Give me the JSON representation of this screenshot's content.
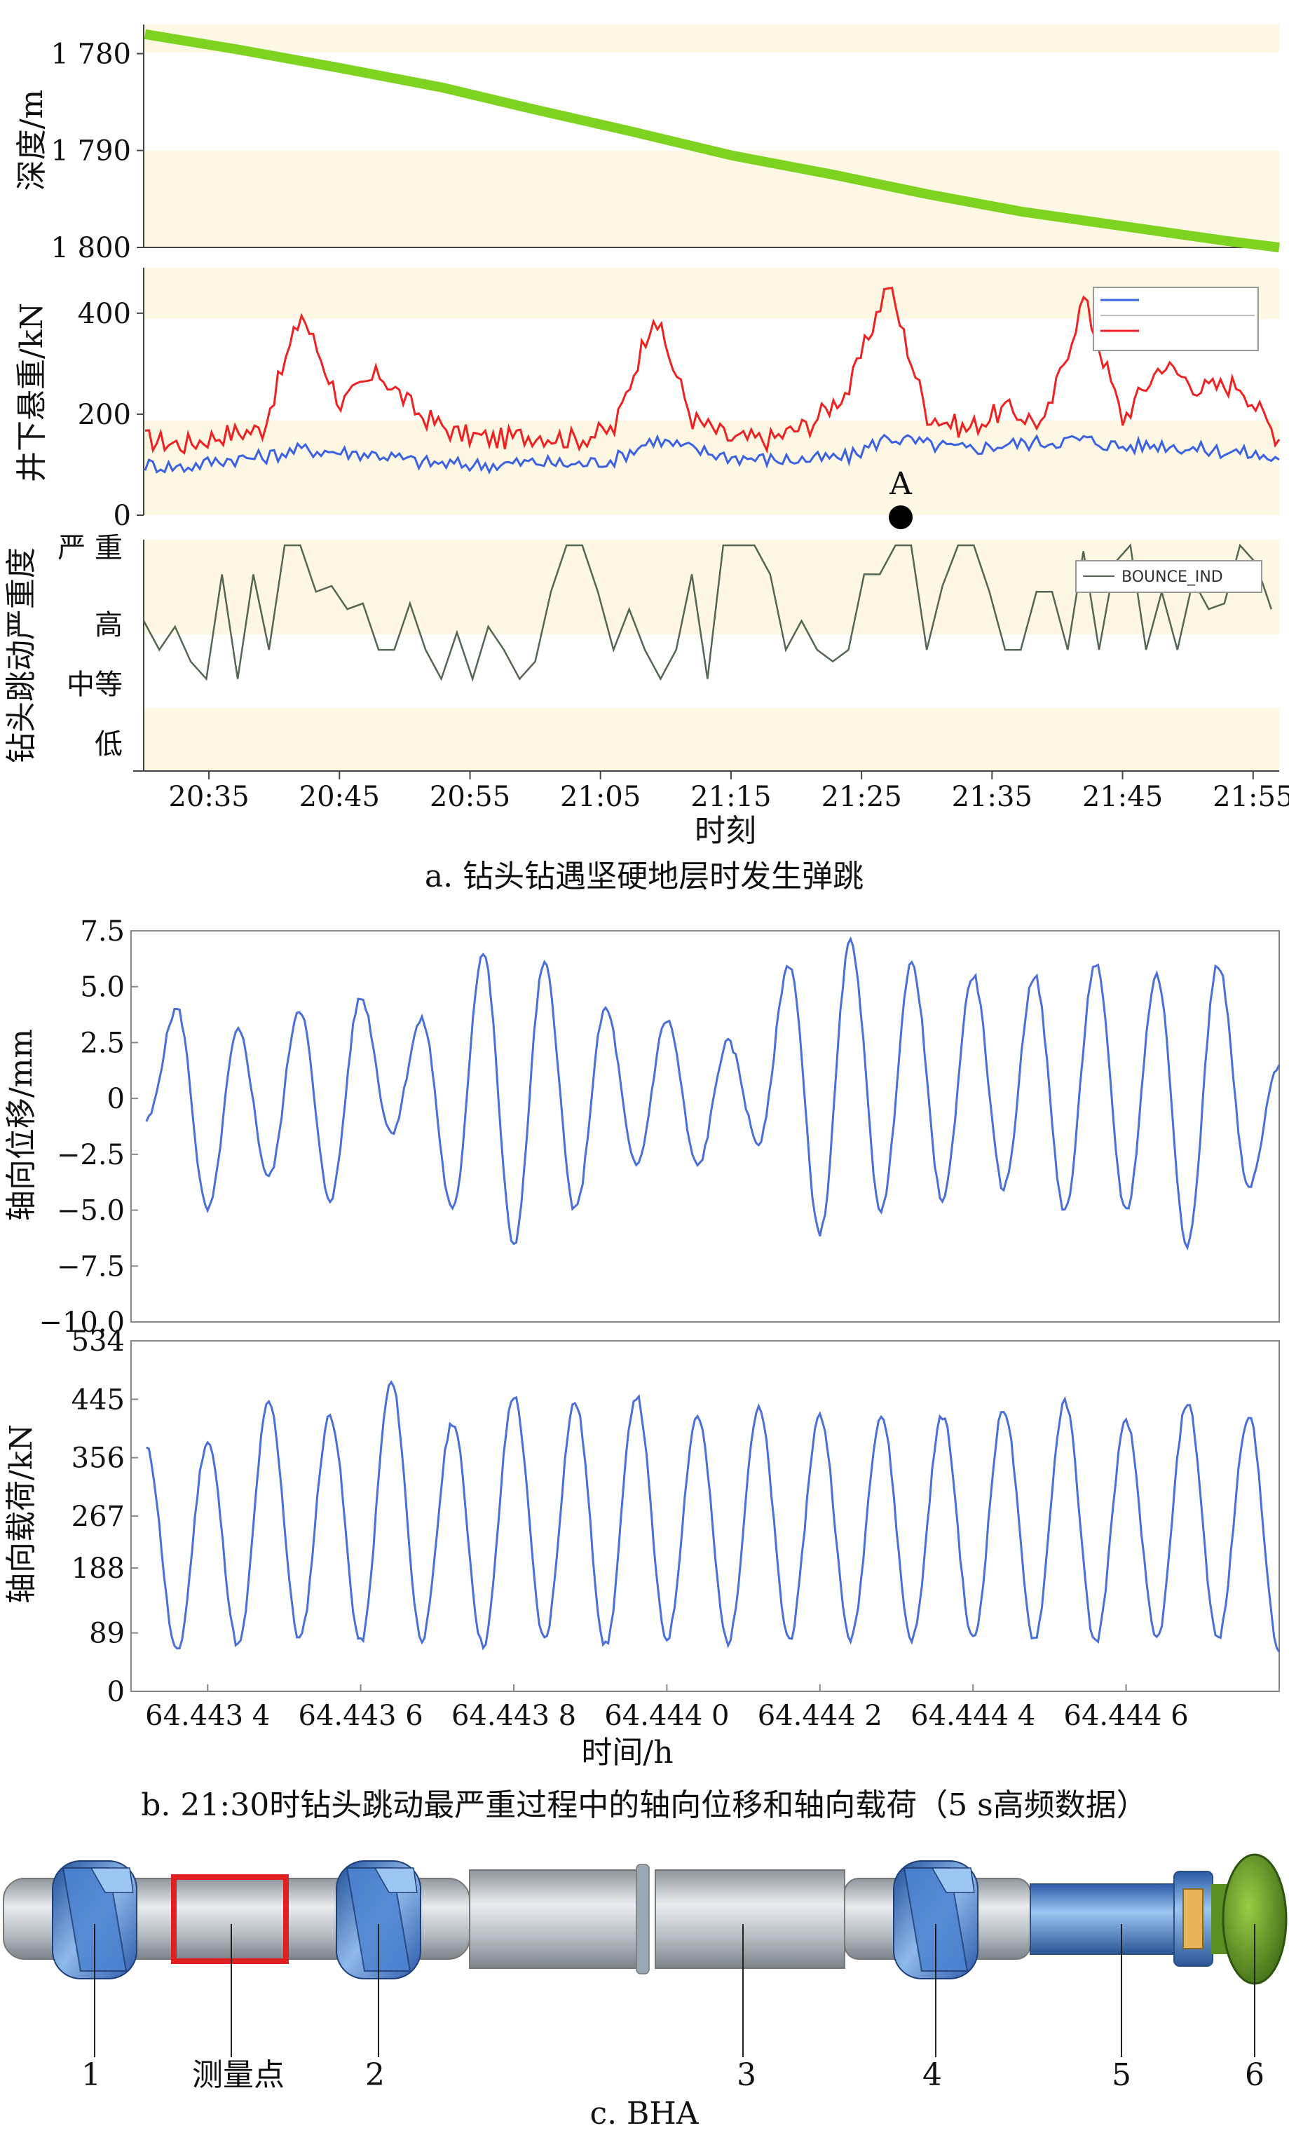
{
  "chart_data": [
    {
      "type": "line",
      "panel": "a",
      "ylabel": "深度/m",
      "yticks": [
        "1 780",
        "1 790",
        "1 800"
      ],
      "ylim": [
        1777,
        1800
      ],
      "ytick_values": [
        1780,
        1790,
        1800
      ],
      "y_inverted": true,
      "xlim": [
        20.5,
        21.95
      ],
      "colors": {
        "series": "#7ed321"
      },
      "series": [
        {
          "x": [
            20.5,
            20.62,
            20.75,
            20.88,
            21.0,
            21.12,
            21.25,
            21.38,
            21.5,
            21.62,
            21.75,
            21.88,
            21.95
          ],
          "values": [
            1778.0,
            1779.6,
            1781.5,
            1783.5,
            1785.8,
            1788.0,
            1790.5,
            1792.5,
            1794.5,
            1796.3,
            1797.8,
            1799.3,
            1800.0
          ]
        }
      ]
    },
    {
      "type": "line",
      "panel": "a",
      "ylabel": "井下悬重/kN",
      "yticks": [
        "0",
        "200",
        "400"
      ],
      "ytick_values": [
        0,
        200,
        400
      ],
      "ylim": [
        0,
        490
      ],
      "xlim": [
        20.5,
        21.95
      ],
      "annotation": "A",
      "colors": {
        "red": "#ee2222",
        "blue": "#3b62e0"
      },
      "series": [
        {
          "x": [
            20.5,
            20.55,
            20.6,
            20.65,
            20.7,
            20.75,
            20.8,
            20.85,
            20.9,
            20.95,
            21.0,
            21.05,
            21.1,
            21.15,
            21.2,
            21.25,
            21.3,
            21.35,
            21.4,
            21.45,
            21.5,
            21.55,
            21.6,
            21.65,
            21.7,
            21.75,
            21.8,
            21.85,
            21.9,
            21.95
          ],
          "values": [
            150,
            140,
            160,
            170,
            400,
            220,
            280,
            200,
            160,
            150,
            160,
            150,
            170,
            400,
            190,
            150,
            150,
            180,
            250,
            460,
            200,
            170,
            210,
            180,
            430,
            190,
            300,
            250,
            260,
            150
          ]
        },
        {
          "x": [
            20.5,
            20.55,
            20.6,
            20.65,
            20.7,
            20.75,
            20.8,
            20.85,
            20.9,
            20.95,
            21.0,
            21.05,
            21.1,
            21.15,
            21.2,
            21.25,
            21.3,
            21.35,
            21.4,
            21.45,
            21.5,
            21.55,
            21.6,
            21.65,
            21.7,
            21.75,
            21.8,
            21.85,
            21.9,
            21.95
          ],
          "values": [
            100,
            95,
            110,
            115,
            130,
            125,
            120,
            105,
            100,
            100,
            105,
            100,
            110,
            150,
            130,
            115,
            110,
            110,
            115,
            155,
            140,
            130,
            140,
            145,
            150,
            135,
            140,
            130,
            125,
            110
          ]
        }
      ]
    },
    {
      "type": "line",
      "panel": "a",
      "ylabel": "钻头跳动严重度",
      "yticks": [
        "严 重",
        "高",
        "中等",
        "低"
      ],
      "legend": "BOUNCE_IND",
      "colors": {
        "series": "#556655"
      },
      "xlim": [
        20.5,
        21.95
      ],
      "xticks": [
        "20:35",
        "20:45",
        "20:55",
        "21:05",
        "21:15",
        "21:25",
        "21:35",
        "21:45",
        "21:55"
      ],
      "xtick_values": [
        20.5833,
        20.75,
        20.9167,
        21.0833,
        21.25,
        21.4167,
        21.5833,
        21.75,
        21.9167
      ],
      "xlabel": "时刻",
      "series": [
        {
          "x": [
            20.5,
            20.52,
            20.54,
            20.56,
            20.58,
            20.6,
            20.62,
            20.64,
            20.66,
            20.68,
            20.7,
            20.72,
            20.74,
            20.76,
            20.78,
            20.8,
            20.82,
            20.84,
            20.86,
            20.88,
            20.9,
            20.92,
            20.94,
            20.96,
            20.98,
            21.0,
            21.02,
            21.04,
            21.06,
            21.08,
            21.1,
            21.12,
            21.14,
            21.16,
            21.18,
            21.2,
            21.22,
            21.24,
            21.26,
            21.28,
            21.3,
            21.32,
            21.34,
            21.36,
            21.38,
            21.4,
            21.42,
            21.44,
            21.46,
            21.48,
            21.5,
            21.52,
            21.54,
            21.56,
            21.58,
            21.6,
            21.62,
            21.64,
            21.66,
            21.68,
            21.7,
            21.72,
            21.74,
            21.76,
            21.78,
            21.8,
            21.82,
            21.84,
            21.86,
            21.88,
            21.9,
            21.92,
            21.94
          ],
          "values": [
            2.0,
            1.5,
            1.9,
            1.3,
            1.0,
            2.8,
            1.0,
            2.8,
            1.5,
            3.3,
            3.3,
            2.5,
            2.6,
            2.2,
            2.3,
            1.5,
            1.5,
            2.3,
            1.5,
            1.0,
            1.8,
            1.0,
            1.9,
            1.5,
            1.0,
            1.3,
            2.5,
            3.3,
            3.3,
            2.5,
            1.5,
            2.2,
            1.5,
            1.0,
            1.5,
            2.8,
            1.0,
            3.3,
            3.3,
            3.3,
            2.8,
            1.5,
            2.0,
            1.5,
            1.3,
            1.5,
            2.8,
            2.8,
            3.3,
            3.3,
            1.5,
            2.6,
            3.3,
            3.3,
            2.5,
            1.5,
            1.5,
            2.5,
            2.5,
            1.5,
            3.2,
            1.5,
            3.0,
            3.3,
            1.5,
            2.5,
            1.5,
            2.7,
            2.2,
            2.3,
            3.3,
            3.0,
            2.2
          ]
        }
      ]
    },
    {
      "type": "line",
      "panel": "b",
      "ylabel": "轴向位移/mm",
      "yticks": [
        "7.5",
        "5.0",
        "2.5",
        "0",
        "−2.5",
        "−5.0",
        "−7.5",
        "−10.0"
      ],
      "ytick_values": [
        7.5,
        5.0,
        2.5,
        0,
        -2.5,
        -5.0,
        -7.5,
        -10.0
      ],
      "ylim": [
        -10.0,
        7.5
      ],
      "xlim": [
        64.4433,
        64.4448
      ],
      "colors": {
        "series": "#4a6fd8"
      },
      "series": [
        {
          "x": [
            64.44332,
            64.44336,
            64.4434,
            64.44344,
            64.44348,
            64.44352,
            64.44356,
            64.4436,
            64.44364,
            64.44368,
            64.44372,
            64.44376,
            64.4438,
            64.44384,
            64.44388,
            64.44392,
            64.44396,
            64.444,
            64.44404,
            64.44408,
            64.44412,
            64.44416,
            64.4442,
            64.44424,
            64.44428,
            64.44432,
            64.44436,
            64.4444,
            64.44444,
            64.44448,
            64.44452,
            64.44456,
            64.4446,
            64.44464,
            64.44468,
            64.44472,
            64.44476,
            64.4448
          ],
          "values": [
            -1.0,
            4.0,
            -5.0,
            3.0,
            -3.5,
            4.0,
            -4.5,
            4.5,
            -1.5,
            3.5,
            -5.0,
            6.5,
            -6.5,
            6.0,
            -5.0,
            4.0,
            -3.0,
            3.5,
            -3.0,
            2.5,
            -2.0,
            6.0,
            -6.0,
            7.0,
            -5.0,
            6.0,
            -4.5,
            5.5,
            -4.0,
            5.5,
            -5.0,
            6.0,
            -5.0,
            5.5,
            -6.5,
            6.0,
            -4.0,
            1.5
          ]
        }
      ]
    },
    {
      "type": "line",
      "panel": "b",
      "ylabel": "轴向载荷/kN",
      "yticks": [
        "534",
        "445",
        "356",
        "267",
        "188",
        "89",
        "0"
      ],
      "ytick_values": [
        534,
        445,
        356,
        267,
        188,
        89,
        0
      ],
      "ylim": [
        0,
        534
      ],
      "xlim": [
        64.4433,
        64.4448
      ],
      "xticks": [
        "64.443 4",
        "64.443 6",
        "64.443 8",
        "64.444 0",
        "64.444 2",
        "64.444 4",
        "64.444 6"
      ],
      "xtick_values": [
        64.4434,
        64.4436,
        64.4438,
        64.444,
        64.4442,
        64.4444,
        64.4446
      ],
      "xlabel": "时间/h",
      "colors": {
        "series": "#4a6fd8"
      },
      "series": [
        {
          "x": [
            64.44332,
            64.44336,
            64.4434,
            64.44344,
            64.44348,
            64.44352,
            64.44356,
            64.4436,
            64.44364,
            64.44368,
            64.44372,
            64.44376,
            64.4438,
            64.44384,
            64.44388,
            64.44392,
            64.44396,
            64.444,
            64.44404,
            64.44408,
            64.44412,
            64.44416,
            64.4442,
            64.44424,
            64.44428,
            64.44432,
            64.44436,
            64.4444,
            64.44444,
            64.44448,
            64.44452,
            64.44456,
            64.4446,
            64.44464,
            64.44468,
            64.44472,
            64.44476,
            64.4448
          ],
          "values": [
            370,
            60,
            380,
            70,
            440,
            80,
            420,
            75,
            470,
            80,
            410,
            70,
            450,
            80,
            440,
            70,
            450,
            80,
            420,
            75,
            430,
            80,
            420,
            80,
            420,
            80,
            420,
            80,
            430,
            80,
            440,
            75,
            410,
            80,
            440,
            80,
            420,
            60
          ]
        }
      ]
    }
  ],
  "captions": {
    "a": "a. 钻头钻遇坚硬地层时发生弹跳",
    "b": "b. 21:30时钻头跳动最严重过程中的轴向位移和轴向载荷（5 s高频数据）",
    "c": "c. BHA"
  },
  "bha": {
    "labels": [
      "1",
      "测量点",
      "2",
      "3",
      "4",
      "5",
      "6"
    ],
    "colors": {
      "pipe": "#b8bec4",
      "stabilizer": "#3f78c4",
      "collar": "#4f8ad8",
      "bit": "#6aa22a",
      "marker": "#e02020"
    }
  }
}
